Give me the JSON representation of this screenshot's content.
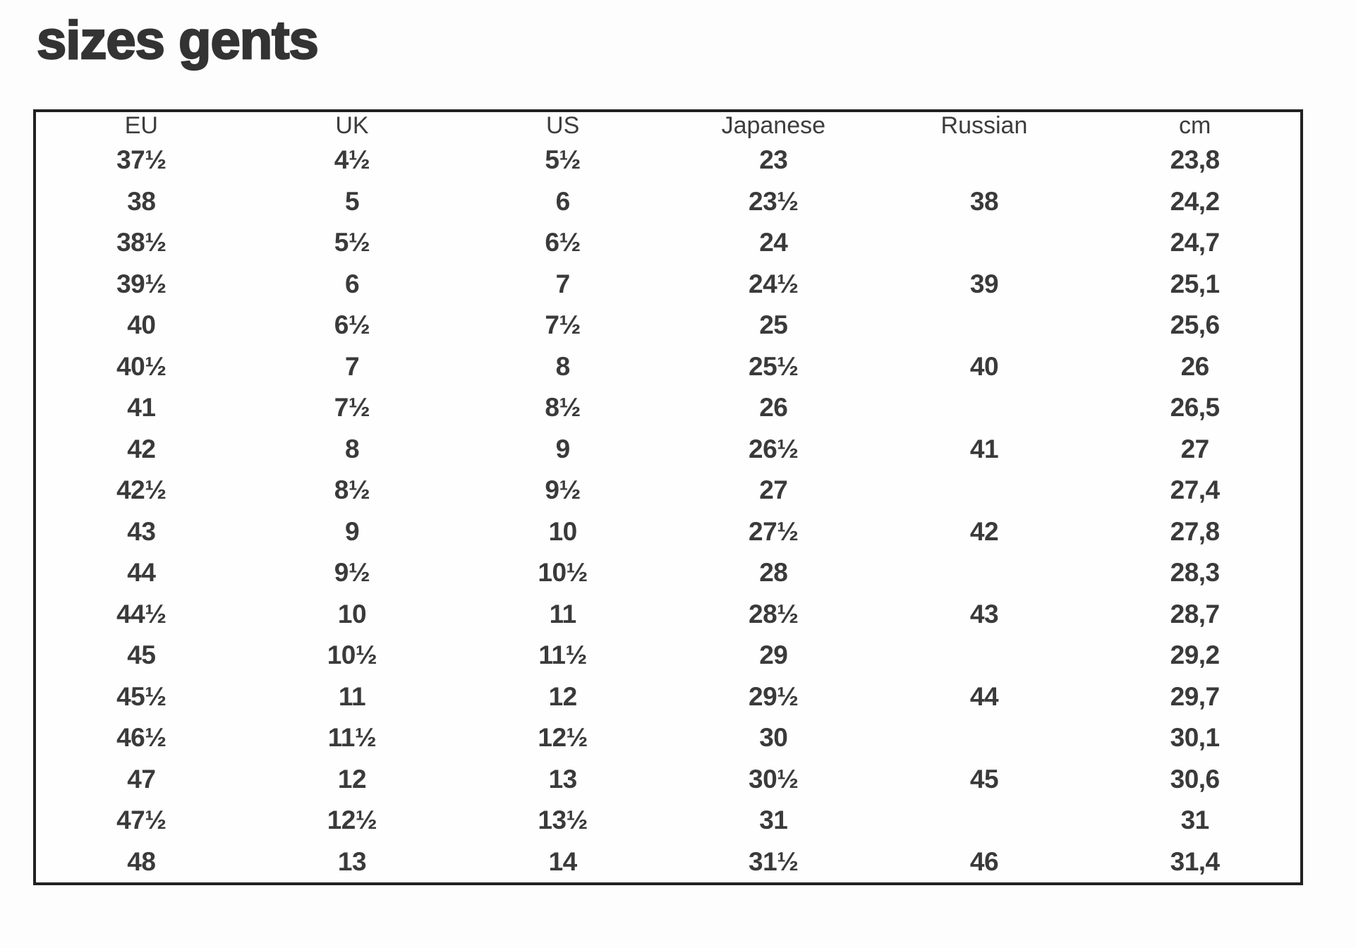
{
  "page": {
    "title": "sizes gents"
  },
  "colors": {
    "title_text": "#333333",
    "body_text": "#3a3a3a",
    "table_border": "#212121",
    "background": "#fdfdfd"
  },
  "table": {
    "headers": [
      "EU",
      "UK",
      "US",
      "Japanese",
      "Russian",
      "cm"
    ],
    "rows": [
      [
        "37½",
        "4½",
        "5½",
        "23",
        "",
        "23,8"
      ],
      [
        "38",
        "5",
        "6",
        "23½",
        "38",
        "24,2"
      ],
      [
        "38½",
        "5½",
        "6½",
        "24",
        "",
        "24,7"
      ],
      [
        "39½",
        "6",
        "7",
        "24½",
        "39",
        "25,1"
      ],
      [
        "40",
        "6½",
        "7½",
        "25",
        "",
        "25,6"
      ],
      [
        "40½",
        "7",
        "8",
        "25½",
        "40",
        "26"
      ],
      [
        "41",
        "7½",
        "8½",
        "26",
        "",
        "26,5"
      ],
      [
        "42",
        "8",
        "9",
        "26½",
        "41",
        "27"
      ],
      [
        "42½",
        "8½",
        "9½",
        "27",
        "",
        "27,4"
      ],
      [
        "43",
        "9",
        "10",
        "27½",
        "42",
        "27,8"
      ],
      [
        "44",
        "9½",
        "10½",
        "28",
        "",
        "28,3"
      ],
      [
        "44½",
        "10",
        "11",
        "28½",
        "43",
        "28,7"
      ],
      [
        "45",
        "10½",
        "11½",
        "29",
        "",
        "29,2"
      ],
      [
        "45½",
        "11",
        "12",
        "29½",
        "44",
        "29,7"
      ],
      [
        "46½",
        "11½",
        "12½",
        "30",
        "",
        "30,1"
      ],
      [
        "47",
        "12",
        "13",
        "30½",
        "45",
        "30,6"
      ],
      [
        "47½",
        "12½",
        "13½",
        "31",
        "",
        "31"
      ],
      [
        "48",
        "13",
        "14",
        "31½",
        "46",
        "31,4"
      ]
    ]
  }
}
